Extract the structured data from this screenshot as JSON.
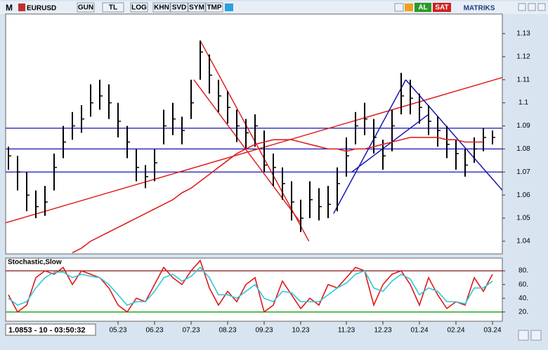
{
  "toolbar": {
    "logo": "M",
    "symbol": "EURUSD",
    "buttons": [
      "GUN",
      "TL",
      "LOG",
      "KHN",
      "SVD",
      "SYM",
      "TMP"
    ],
    "buy": "AL",
    "sell": "SAT",
    "brand": "MATRIKS"
  },
  "status": "1.0853 - 10 - 03:50:32",
  "chart_data": [
    {
      "type": "ohlc",
      "categories": [
        null,
        null,
        null,
        null,
        null,
        null,
        null,
        null,
        null,
        null,
        null,
        null,
        "05.23",
        null,
        null,
        null,
        "06.23",
        null,
        null,
        null,
        "07.23",
        null,
        null,
        null,
        "08.23",
        null,
        null,
        null,
        "09.23",
        null,
        null,
        null,
        "10.23",
        null,
        null,
        null,
        null,
        "11.23",
        null,
        null,
        null,
        "12.23",
        null,
        null,
        null,
        "01.24",
        null,
        null,
        null,
        "02.24",
        null,
        null,
        null,
        "03.24"
      ],
      "high": [
        1.081,
        1.077,
        1.07,
        1.062,
        1.064,
        1.078,
        1.09,
        1.096,
        1.099,
        1.108,
        1.11,
        1.108,
        1.1,
        1.09,
        1.08,
        1.073,
        1.08,
        1.097,
        1.1,
        1.094,
        1.11,
        1.127,
        1.121,
        1.11,
        1.105,
        1.097,
        1.093,
        1.095,
        1.088,
        1.078,
        1.072,
        1.066,
        1.058,
        1.066,
        1.063,
        1.064,
        1.072,
        1.085,
        1.096,
        1.1,
        1.093,
        1.084,
        1.097,
        1.113,
        1.11,
        1.104,
        1.099,
        1.094,
        1.09,
        1.084,
        1.08,
        1.085,
        1.089,
        1.088
      ],
      "low": [
        1.071,
        1.062,
        1.053,
        1.05,
        1.051,
        1.062,
        1.076,
        1.084,
        1.087,
        1.094,
        1.097,
        1.093,
        1.085,
        1.076,
        1.066,
        1.063,
        1.066,
        1.082,
        1.086,
        1.082,
        1.093,
        1.11,
        1.104,
        1.096,
        1.091,
        1.083,
        1.08,
        1.081,
        1.07,
        1.064,
        1.058,
        1.049,
        1.044,
        1.05,
        1.049,
        1.05,
        1.053,
        1.068,
        1.082,
        1.086,
        1.078,
        1.071,
        1.079,
        1.095,
        1.095,
        1.091,
        1.086,
        1.081,
        1.076,
        1.071,
        1.068,
        1.074,
        1.079,
        1.082
      ],
      "close": [
        1.077,
        1.07,
        1.06,
        1.055,
        1.057,
        1.072,
        1.083,
        1.09,
        1.093,
        1.1,
        1.103,
        1.1,
        1.092,
        1.083,
        1.072,
        1.068,
        1.074,
        1.09,
        1.093,
        1.088,
        1.1,
        1.122,
        1.112,
        1.103,
        1.098,
        1.09,
        1.087,
        1.09,
        1.073,
        1.072,
        1.065,
        1.057,
        1.05,
        1.058,
        1.055,
        1.056,
        1.065,
        1.077,
        1.09,
        1.093,
        1.085,
        1.077,
        1.09,
        1.103,
        1.102,
        1.098,
        1.092,
        1.088,
        1.082,
        1.078,
        1.073,
        1.08,
        1.085,
        1.085
      ],
      "color": "#000000",
      "series": [
        {
          "color": "#e02020",
          "values": [
            null,
            null,
            null,
            null,
            null,
            null,
            null,
            1.035,
            1.037,
            1.04,
            1.042,
            1.044,
            1.046,
            1.048,
            1.05,
            1.052,
            1.054,
            1.056,
            1.058,
            1.061,
            1.063,
            1.066,
            1.069,
            1.072,
            1.075,
            1.078,
            1.08,
            1.082,
            1.083,
            1.084,
            1.084,
            1.084,
            1.083,
            1.082,
            1.081,
            1.08,
            1.08,
            1.079,
            1.08,
            1.08,
            1.081,
            1.082,
            1.083,
            1.084,
            1.085,
            1.085,
            1.085,
            1.085,
            1.084,
            1.084,
            1.083,
            1.083,
            1.083,
            null
          ]
        }
      ],
      "hlines": [
        {
          "y": 1.089,
          "color": "#1414b4"
        },
        {
          "y": 1.08,
          "color": "#1414b4"
        },
        {
          "y": 1.07,
          "color": "#1414b4"
        }
      ],
      "trendlines": [
        {
          "x": [
            -0.3,
            54.1
          ],
          "y": [
            1.048,
            1.111
          ],
          "color": "#e02020"
        },
        {
          "x": [
            21.0,
            32.9
          ],
          "y": [
            1.127,
            1.04
          ],
          "color": "#e02020"
        },
        {
          "x": [
            20.3,
            32.0
          ],
          "y": [
            1.11,
            1.048
          ],
          "color": "#e02020"
        },
        {
          "x": [
            35.6,
            43.5
          ],
          "y": [
            1.052,
            1.11
          ],
          "color": "#1414b4"
        },
        {
          "x": [
            43.5,
            54.1
          ],
          "y": [
            1.11,
            1.062
          ],
          "color": "#1414b4"
        },
        {
          "x": [
            37.6,
            46.0
          ],
          "y": [
            1.07,
            1.095
          ],
          "color": "#1414b4"
        }
      ],
      "ylim": [
        1.0345,
        1.1385
      ],
      "yticks": [
        1.04,
        1.05,
        1.06,
        1.07,
        1.08,
        1.09,
        1.1,
        1.11,
        1.12,
        1.13
      ]
    },
    {
      "type": "line",
      "title": "Stochastic,Slow",
      "series": [
        {
          "color": "#e01818",
          "values": [
            45,
            20,
            30,
            70,
            80,
            75,
            85,
            60,
            80,
            75,
            70,
            55,
            30,
            20,
            40,
            35,
            60,
            85,
            70,
            60,
            80,
            95,
            55,
            30,
            50,
            35,
            60,
            70,
            20,
            30,
            65,
            45,
            25,
            40,
            30,
            60,
            55,
            70,
            85,
            80,
            30,
            60,
            75,
            80,
            60,
            30,
            70,
            45,
            25,
            35,
            30,
            70,
            50,
            75
          ]
        },
        {
          "color": "#30c8d8",
          "values": [
            40,
            30,
            35,
            55,
            70,
            78,
            78,
            70,
            75,
            72,
            70,
            60,
            45,
            30,
            35,
            35,
            50,
            70,
            75,
            65,
            72,
            85,
            70,
            45,
            45,
            40,
            50,
            60,
            40,
            35,
            50,
            48,
            35,
            35,
            35,
            45,
            55,
            62,
            75,
            80,
            55,
            50,
            65,
            75,
            68,
            45,
            55,
            50,
            35,
            35,
            32,
            55,
            55,
            65
          ]
        }
      ],
      "hlines": [
        {
          "y": 80,
          "color": "#8b1010"
        },
        {
          "y": 20,
          "color": "#10a010"
        }
      ],
      "ylim": [
        6.5,
        98.5
      ],
      "yticks": [
        {
          "value": 20,
          "label": "20."
        },
        {
          "value": 40,
          "label": "40."
        },
        {
          "value": 60,
          "label": "60."
        },
        {
          "value": 80,
          "label": "80."
        }
      ]
    }
  ]
}
